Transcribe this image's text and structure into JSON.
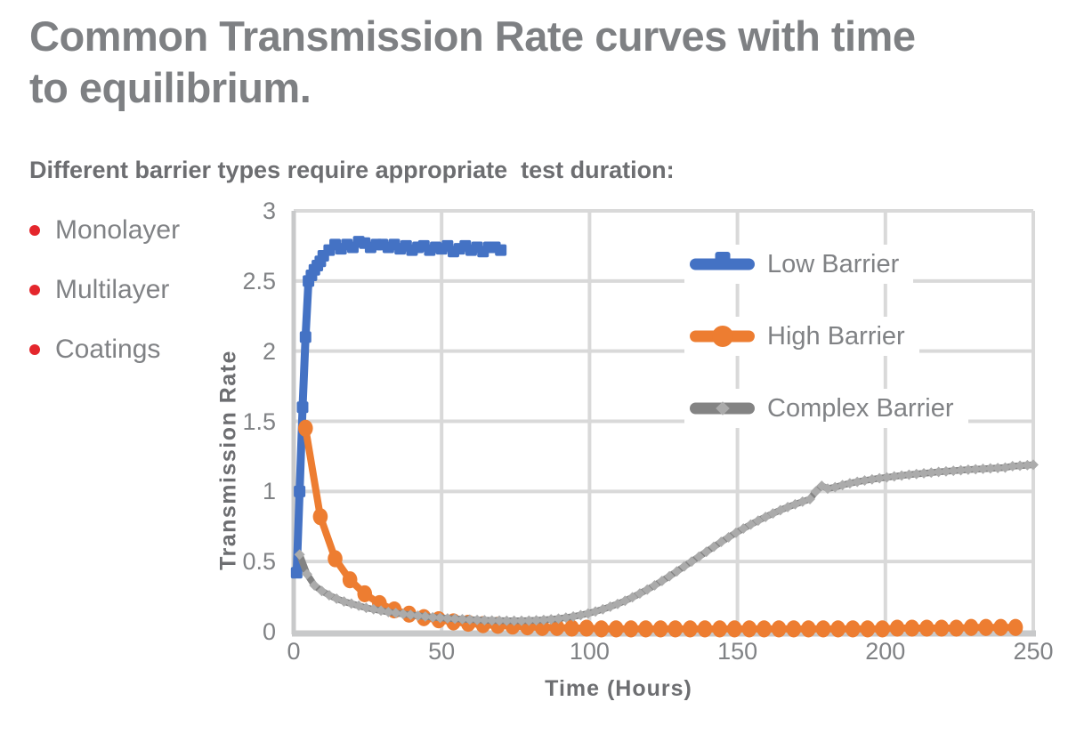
{
  "header": {
    "title_line1": "Common Transmission Rate curves with time",
    "title_line2": "to equilibrium.",
    "subtitle": "Different barrier types require appropriate  test duration:"
  },
  "bullets": [
    {
      "label": "Monolayer"
    },
    {
      "label": "Multilayer"
    },
    {
      "label": "Coatings"
    }
  ],
  "colors": {
    "accent_blue": "#4472C4",
    "accent_orange": "#ED7D31",
    "accent_gray": "#838383",
    "gray_marker": "#ABABAB",
    "bullet_red": "#E4262C",
    "grid": "#D9D9D9",
    "axis": "#C8C9CA",
    "title_text": "#7E8083",
    "body_text": "#808285",
    "dark_text": "#6D6E71"
  },
  "chart_data": {
    "type": "line",
    "title": "",
    "xlabel": "Time (Hours)",
    "ylabel": "Transmission Rate",
    "xlim": [
      0,
      250
    ],
    "ylim": [
      0,
      3
    ],
    "xticks": [
      0,
      50,
      100,
      150,
      200,
      250
    ],
    "yticks": [
      0,
      0.5,
      1,
      1.5,
      2,
      2.5,
      3
    ],
    "grid": true,
    "legend_position": "inside-top-right",
    "series": [
      {
        "name": "Low Barrier",
        "color": "#4472C4",
        "marker": "square",
        "z": 1,
        "points": [
          [
            1,
            0.42
          ],
          [
            2,
            1.0
          ],
          [
            3,
            1.6
          ],
          [
            4,
            2.1
          ],
          [
            5,
            2.5
          ],
          [
            6,
            2.54
          ],
          [
            7,
            2.58
          ],
          [
            8,
            2.61
          ],
          [
            9,
            2.64
          ],
          [
            10,
            2.68
          ],
          [
            12,
            2.72
          ],
          [
            14,
            2.76
          ],
          [
            16,
            2.73
          ],
          [
            18,
            2.76
          ],
          [
            20,
            2.74
          ],
          [
            22,
            2.78
          ],
          [
            24,
            2.77
          ],
          [
            26,
            2.74
          ],
          [
            28,
            2.76
          ],
          [
            30,
            2.76
          ],
          [
            32,
            2.74
          ],
          [
            34,
            2.76
          ],
          [
            36,
            2.73
          ],
          [
            38,
            2.75
          ],
          [
            40,
            2.72
          ],
          [
            42,
            2.74
          ],
          [
            44,
            2.75
          ],
          [
            46,
            2.72
          ],
          [
            48,
            2.74
          ],
          [
            50,
            2.73
          ],
          [
            52,
            2.75
          ],
          [
            54,
            2.71
          ],
          [
            56,
            2.73
          ],
          [
            58,
            2.75
          ],
          [
            60,
            2.72
          ],
          [
            62,
            2.74
          ],
          [
            64,
            2.71
          ],
          [
            66,
            2.74
          ],
          [
            68,
            2.74
          ],
          [
            70,
            2.72
          ]
        ]
      },
      {
        "name": "High Barrier",
        "color": "#ED7D31",
        "marker": "circle",
        "z": 2,
        "points": [
          [
            4,
            1.45
          ],
          [
            9,
            0.82
          ],
          [
            14,
            0.52
          ],
          [
            19,
            0.37
          ],
          [
            24,
            0.27
          ],
          [
            29,
            0.2
          ],
          [
            34,
            0.155
          ],
          [
            39,
            0.125
          ],
          [
            44,
            0.1
          ],
          [
            49,
            0.085
          ],
          [
            54,
            0.07
          ],
          [
            59,
            0.06
          ],
          [
            64,
            0.05
          ],
          [
            69,
            0.045
          ],
          [
            74,
            0.04
          ],
          [
            79,
            0.035
          ],
          [
            84,
            0.03
          ],
          [
            89,
            0.03
          ],
          [
            94,
            0.025
          ],
          [
            99,
            0.025
          ],
          [
            104,
            0.02
          ],
          [
            109,
            0.02
          ],
          [
            114,
            0.02
          ],
          [
            119,
            0.02
          ],
          [
            124,
            0.02
          ],
          [
            129,
            0.02
          ],
          [
            134,
            0.02
          ],
          [
            139,
            0.02
          ],
          [
            144,
            0.02
          ],
          [
            149,
            0.02
          ],
          [
            154,
            0.02
          ],
          [
            159,
            0.02
          ],
          [
            164,
            0.02
          ],
          [
            169,
            0.02
          ],
          [
            174,
            0.02
          ],
          [
            179,
            0.02
          ],
          [
            184,
            0.02
          ],
          [
            189,
            0.02
          ],
          [
            194,
            0.02
          ],
          [
            199,
            0.02
          ],
          [
            204,
            0.025
          ],
          [
            209,
            0.025
          ],
          [
            214,
            0.025
          ],
          [
            219,
            0.025
          ],
          [
            224,
            0.025
          ],
          [
            229,
            0.03
          ],
          [
            234,
            0.03
          ],
          [
            239,
            0.03
          ],
          [
            244,
            0.03
          ]
        ]
      },
      {
        "name": "Complex Barrier",
        "color": "#838383",
        "marker": "diamond",
        "marker_color": "#ABABAB",
        "z": 3,
        "points": [
          [
            2,
            0.55
          ],
          [
            4.5,
            0.41
          ],
          [
            7,
            0.33
          ],
          [
            9.5,
            0.29
          ],
          [
            12,
            0.26
          ],
          [
            14.5,
            0.235
          ],
          [
            17,
            0.215
          ],
          [
            19.5,
            0.2
          ],
          [
            22,
            0.185
          ],
          [
            24.5,
            0.17
          ],
          [
            27,
            0.16
          ],
          [
            29.5,
            0.15
          ],
          [
            32,
            0.14
          ],
          [
            34.5,
            0.133
          ],
          [
            37,
            0.126
          ],
          [
            39.5,
            0.12
          ],
          [
            42,
            0.114
          ],
          [
            44.5,
            0.108
          ],
          [
            47,
            0.103
          ],
          [
            49.5,
            0.099
          ],
          [
            52,
            0.095
          ],
          [
            54.5,
            0.092
          ],
          [
            57,
            0.089
          ],
          [
            59.5,
            0.086
          ],
          [
            62,
            0.084
          ],
          [
            64.5,
            0.082
          ],
          [
            67,
            0.08
          ],
          [
            69.5,
            0.079
          ],
          [
            72,
            0.078
          ],
          [
            74.5,
            0.078
          ],
          [
            77,
            0.078
          ],
          [
            79.5,
            0.079
          ],
          [
            82,
            0.081
          ],
          [
            84.5,
            0.084
          ],
          [
            87,
            0.088
          ],
          [
            89.5,
            0.093
          ],
          [
            92,
            0.1
          ],
          [
            94.5,
            0.108
          ],
          [
            97,
            0.118
          ],
          [
            99.5,
            0.13
          ],
          [
            102,
            0.144
          ],
          [
            104.5,
            0.16
          ],
          [
            107,
            0.178
          ],
          [
            109.5,
            0.198
          ],
          [
            112,
            0.22
          ],
          [
            114.5,
            0.245
          ],
          [
            117,
            0.272
          ],
          [
            119.5,
            0.3
          ],
          [
            122,
            0.33
          ],
          [
            124.5,
            0.362
          ],
          [
            127,
            0.395
          ],
          [
            129.5,
            0.43
          ],
          [
            132,
            0.465
          ],
          [
            134.5,
            0.5
          ],
          [
            137,
            0.535
          ],
          [
            139.5,
            0.57
          ],
          [
            142,
            0.605
          ],
          [
            144.5,
            0.64
          ],
          [
            147,
            0.673
          ],
          [
            149.5,
            0.705
          ],
          [
            152,
            0.735
          ],
          [
            154.5,
            0.764
          ],
          [
            157,
            0.792
          ],
          [
            159.5,
            0.818
          ],
          [
            162,
            0.843
          ],
          [
            164.5,
            0.866
          ],
          [
            167,
            0.888
          ],
          [
            169.5,
            0.908
          ],
          [
            172,
            0.927
          ],
          [
            174.5,
            0.945
          ],
          [
            176.5,
            1.0
          ],
          [
            178.5,
            1.04
          ],
          [
            180.5,
            1.02
          ],
          [
            183,
            1.03
          ],
          [
            185.5,
            1.045
          ],
          [
            188,
            1.058
          ],
          [
            190.5,
            1.068
          ],
          [
            193,
            1.078
          ],
          [
            195.5,
            1.086
          ],
          [
            198,
            1.094
          ],
          [
            200.5,
            1.1
          ],
          [
            203,
            1.107
          ],
          [
            205.5,
            1.113
          ],
          [
            208,
            1.119
          ],
          [
            210.5,
            1.124
          ],
          [
            213,
            1.129
          ],
          [
            215.5,
            1.134
          ],
          [
            218,
            1.139
          ],
          [
            220.5,
            1.143
          ],
          [
            223,
            1.147
          ],
          [
            225.5,
            1.151
          ],
          [
            228,
            1.155
          ],
          [
            230.5,
            1.158
          ],
          [
            233,
            1.161
          ],
          [
            235.5,
            1.164
          ],
          [
            238,
            1.167
          ],
          [
            240.5,
            1.17
          ],
          [
            243,
            1.18
          ],
          [
            245.5,
            1.183
          ],
          [
            248,
            1.187
          ],
          [
            250,
            1.19
          ]
        ]
      }
    ]
  }
}
